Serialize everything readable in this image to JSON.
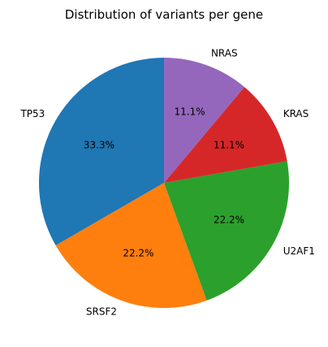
{
  "chart_data": {
    "type": "pie",
    "title": "Distribution of variants per gene",
    "labels": [
      "TP53",
      "SRSF2",
      "U2AF1",
      "KRAS",
      "NRAS"
    ],
    "values": [
      3,
      2,
      2,
      1,
      1
    ],
    "percent_labels": [
      "33.3%",
      "22.2%",
      "22.2%",
      "11.1%",
      "11.1%"
    ],
    "colors": [
      "#1f77b4",
      "#ff7f0e",
      "#2ca02c",
      "#d62728",
      "#9467bd"
    ],
    "start_angle_deg": 90,
    "direction": "counterclockwise"
  }
}
